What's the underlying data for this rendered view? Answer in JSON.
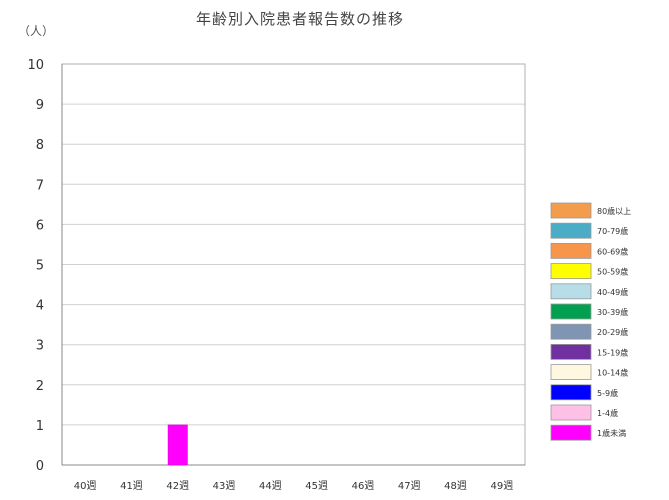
{
  "chart_data": {
    "type": "bar",
    "stacked": true,
    "title": "年齢別入院患者報告数の推移",
    "ylabel": "（人）",
    "xlabel": "",
    "ylim": [
      0,
      10
    ],
    "yticks": [
      "0",
      "1",
      "2",
      "3",
      "4",
      "5",
      "6",
      "7",
      "8",
      "9",
      "10"
    ],
    "grid": true,
    "legend_position": "right",
    "categories": [
      "40週",
      "41週",
      "42週",
      "43週",
      "44週",
      "45週",
      "46週",
      "47週",
      "48週",
      "49週"
    ],
    "series": [
      {
        "name": "80歳以上",
        "color": "#f39c4c",
        "values": [
          0,
          0,
          0,
          0,
          0,
          0,
          0,
          0,
          0,
          0
        ]
      },
      {
        "name": "70-79歳",
        "color": "#4aacc5",
        "values": [
          0,
          0,
          0,
          0,
          0,
          0,
          0,
          0,
          0,
          0
        ]
      },
      {
        "name": "60-69歳",
        "color": "#f7964a",
        "values": [
          0,
          0,
          0,
          0,
          0,
          0,
          0,
          0,
          0,
          0
        ]
      },
      {
        "name": "50-59歳",
        "color": "#ffff00",
        "values": [
          0,
          0,
          0,
          0,
          0,
          0,
          0,
          0,
          0,
          0
        ]
      },
      {
        "name": "40-49歳",
        "color": "#b7dde8",
        "values": [
          0,
          0,
          0,
          0,
          0,
          0,
          0,
          0,
          0,
          0
        ]
      },
      {
        "name": "30-39歳",
        "color": "#00a050",
        "values": [
          0,
          0,
          0,
          0,
          0,
          0,
          0,
          0,
          0,
          0
        ]
      },
      {
        "name": "20-29歳",
        "color": "#8094b4",
        "values": [
          0,
          0,
          0,
          0,
          0,
          0,
          0,
          0,
          0,
          0
        ]
      },
      {
        "name": "15-19歳",
        "color": "#7030a0",
        "values": [
          0,
          0,
          0,
          0,
          0,
          0,
          0,
          0,
          0,
          0
        ]
      },
      {
        "name": "10-14歳",
        "color": "#fff8e0",
        "values": [
          0,
          0,
          0,
          0,
          0,
          0,
          0,
          0,
          0,
          0
        ]
      },
      {
        "name": "5-9歳",
        "color": "#0000ff",
        "values": [
          0,
          0,
          0,
          0,
          0,
          0,
          0,
          0,
          0,
          0
        ]
      },
      {
        "name": "1-4歳",
        "color": "#ffc0e8",
        "values": [
          0,
          0,
          0,
          0,
          0,
          0,
          0,
          0,
          0,
          0
        ]
      },
      {
        "name": "1歳未満",
        "color": "#ff00ff",
        "values": [
          0,
          0,
          1,
          0,
          0,
          0,
          0,
          0,
          0,
          0
        ]
      }
    ]
  }
}
